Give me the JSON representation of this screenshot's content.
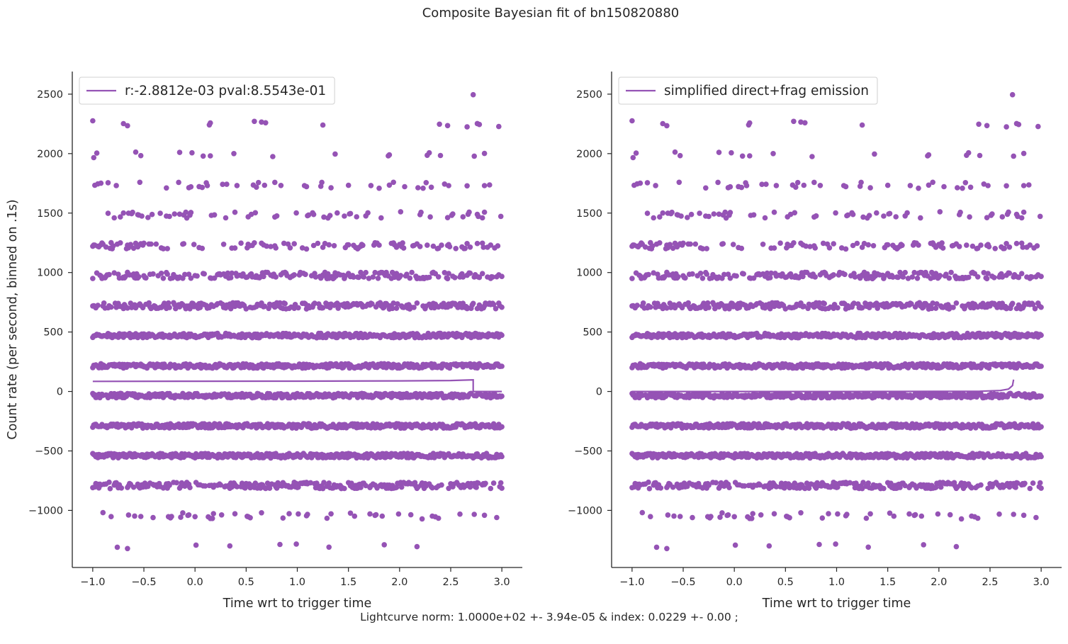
{
  "figure": {
    "suptitle": "Composite Bayesian fit of bn150820880",
    "footer": "Lightcurve norm: 1.0000e+02 +- 3.94e-05 & index: 0.0229 +- 0.00 ;"
  },
  "colors": {
    "series": "#9553b5",
    "axis": "#262626"
  },
  "chart_data": [
    {
      "type": "scatter",
      "xlabel": "Time wrt to trigger time",
      "ylabel": "Count rate (per second, binned on .1s)",
      "xlim": [
        -1.2,
        3.2
      ],
      "ylim": [
        -1480,
        2690
      ],
      "xticks": [
        -1.0,
        -0.5,
        0.0,
        0.5,
        1.0,
        1.5,
        2.0,
        2.5,
        3.0
      ],
      "xtick_labels": [
        "−1.0",
        "−0.5",
        "0.0",
        "0.5",
        "1.0",
        "1.5",
        "2.0",
        "2.5",
        "3.0"
      ],
      "yticks": [
        -1000,
        -500,
        0,
        500,
        1000,
        1500,
        2000,
        2500
      ],
      "ytick_labels": [
        "−1000",
        "−500",
        "0",
        "500",
        "1000",
        "1500",
        "2000",
        "2500"
      ],
      "legend": {
        "label": "r:-2.8812e-03  pval:8.5543e-01",
        "placement": "upper-left"
      },
      "scatter_bands": [
        2495,
        2250,
        1990,
        1735,
        1485,
        1225,
        975,
        720,
        470,
        215,
        -35,
        -290,
        -540,
        -790,
        -1045,
        -1300
      ],
      "fit_line": [
        {
          "x": -1.0,
          "y": 85
        },
        {
          "x": 0.0,
          "y": 86
        },
        {
          "x": 1.0,
          "y": 87
        },
        {
          "x": 2.0,
          "y": 89
        },
        {
          "x": 2.5,
          "y": 92
        },
        {
          "x": 2.72,
          "y": 98
        },
        {
          "x": 2.72,
          "y": 0
        },
        {
          "x": 3.0,
          "y": 0
        }
      ],
      "grid": false
    },
    {
      "type": "scatter",
      "xlabel": "Time wrt to trigger time",
      "ylabel": "",
      "xlim": [
        -1.2,
        3.2
      ],
      "ylim": [
        -1480,
        2690
      ],
      "xticks": [
        -1.0,
        -0.5,
        0.0,
        0.5,
        1.0,
        1.5,
        2.0,
        2.5,
        3.0
      ],
      "xtick_labels": [
        "−1.0",
        "−0.5",
        "0.0",
        "0.5",
        "1.0",
        "1.5",
        "2.0",
        "2.5",
        "3.0"
      ],
      "yticks": [
        -1000,
        -500,
        0,
        500,
        1000,
        1500,
        2000,
        2500
      ],
      "ytick_labels": [
        "−1000",
        "−500",
        "0",
        "500",
        "1000",
        "1500",
        "2000",
        "2500"
      ],
      "legend": {
        "label": "simplified direct+frag emission",
        "placement": "upper-left"
      },
      "scatter_bands": [
        2495,
        2250,
        1990,
        1735,
        1485,
        1225,
        975,
        720,
        470,
        215,
        -35,
        -290,
        -540,
        -790,
        -1045,
        -1300
      ],
      "fit_line": [
        {
          "x": -1.0,
          "y": 0
        },
        {
          "x": 1.0,
          "y": 0
        },
        {
          "x": 2.0,
          "y": 1
        },
        {
          "x": 2.4,
          "y": 2
        },
        {
          "x": 2.6,
          "y": 8
        },
        {
          "x": 2.68,
          "y": 20
        },
        {
          "x": 2.72,
          "y": 50
        },
        {
          "x": 2.73,
          "y": 100
        }
      ],
      "grid": false
    }
  ]
}
